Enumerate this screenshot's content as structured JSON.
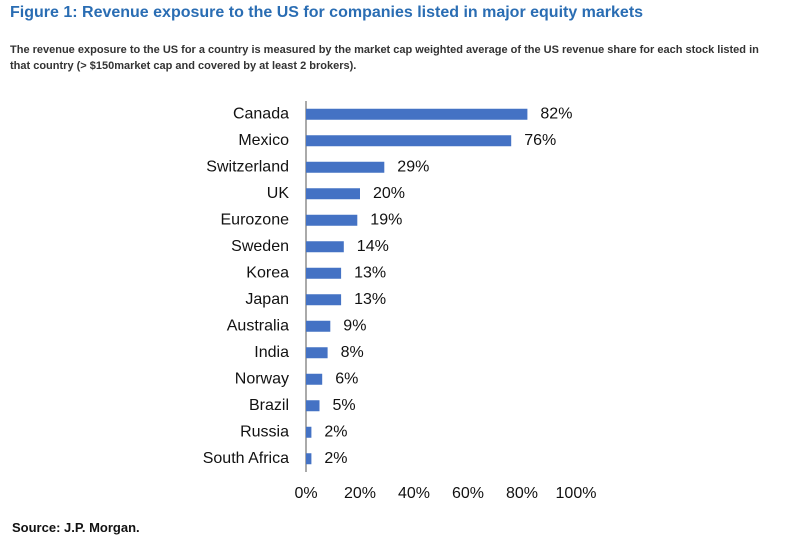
{
  "figure": {
    "title": "Figure 1: Revenue exposure to the US for companies listed in major equity markets",
    "subtitle": "The revenue exposure to the US for a country is measured by the market cap weighted average of the US revenue share for each stock listed in that country (> $150market cap and covered by at least 2 brokers).",
    "source": "Source: J.P. Morgan."
  },
  "colors": {
    "bar": "#4472c4",
    "title": "#2a6db3"
  },
  "chart_data": {
    "type": "bar",
    "orientation": "horizontal",
    "categories": [
      "Canada",
      "Mexico",
      "Switzerland",
      "UK",
      "Eurozone",
      "Sweden",
      "Korea",
      "Japan",
      "Australia",
      "India",
      "Norway",
      "Brazil",
      "Russia",
      "South Africa"
    ],
    "values": [
      82,
      76,
      29,
      20,
      19,
      14,
      13,
      13,
      9,
      8,
      6,
      5,
      2,
      2
    ],
    "data_labels": [
      "82%",
      "76%",
      "29%",
      "20%",
      "19%",
      "14%",
      "13%",
      "13%",
      "9%",
      "8%",
      "6%",
      "5%",
      "2%",
      "2%"
    ],
    "xlim": [
      0,
      100
    ],
    "xticks": [
      0,
      20,
      40,
      60,
      80,
      100
    ],
    "xtick_labels": [
      "0%",
      "20%",
      "40%",
      "60%",
      "80%",
      "100%"
    ],
    "grid": false,
    "legend": "none"
  }
}
